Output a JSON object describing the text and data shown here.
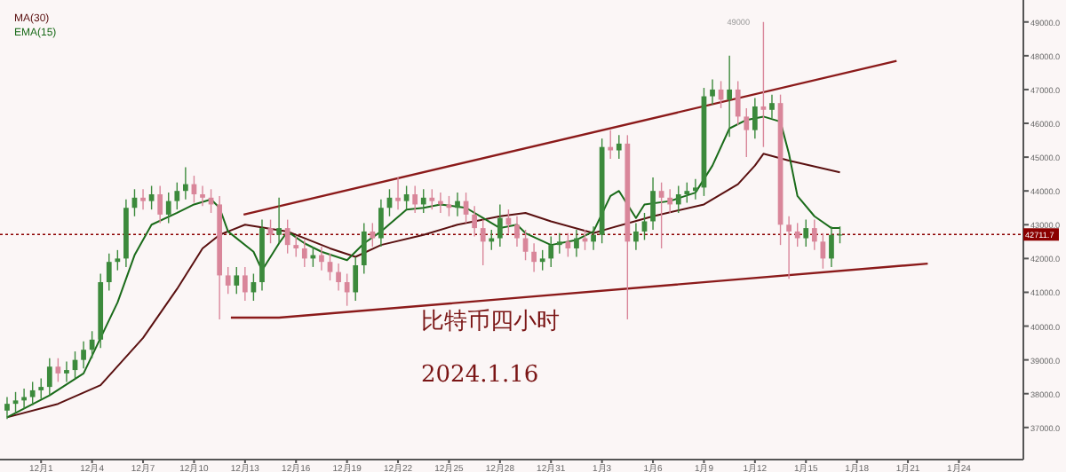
{
  "chart_data": {
    "type": "candlestick",
    "x": [
      "2023-11-29T00:00",
      "2023-11-29T12:00",
      "2023-11-30T00:00",
      "2023-11-30T12:00",
      "2023-12-01T00:00",
      "2023-12-01T12:00",
      "2023-12-02T00:00",
      "2023-12-02T12:00",
      "2023-12-03T00:00",
      "2023-12-03T12:00",
      "2023-12-04T00:00",
      "2023-12-04T12:00",
      "2023-12-05T00:00",
      "2023-12-05T12:00",
      "2023-12-06T00:00",
      "2023-12-06T12:00",
      "2023-12-07T00:00",
      "2023-12-07T12:00",
      "2023-12-08T00:00",
      "2023-12-08T12:00",
      "2023-12-09T00:00",
      "2023-12-09T12:00",
      "2023-12-10T00:00",
      "2023-12-10T12:00",
      "2023-12-11T00:00",
      "2023-12-11T12:00",
      "2023-12-12T00:00",
      "2023-12-12T12:00",
      "2023-12-13T00:00",
      "2023-12-13T12:00",
      "2023-12-14T00:00",
      "2023-12-14T12:00",
      "2023-12-15T00:00",
      "2023-12-15T12:00",
      "2023-12-16T00:00",
      "2023-12-16T12:00",
      "2023-12-17T00:00",
      "2023-12-17T12:00",
      "2023-12-18T00:00",
      "2023-12-18T12:00",
      "2023-12-19T00:00",
      "2023-12-19T12:00",
      "2023-12-20T00:00",
      "2023-12-20T12:00",
      "2023-12-21T00:00",
      "2023-12-21T12:00",
      "2023-12-22T00:00",
      "2023-12-22T12:00",
      "2023-12-23T00:00",
      "2023-12-23T12:00",
      "2023-12-24T00:00",
      "2023-12-24T12:00",
      "2023-12-25T00:00",
      "2023-12-25T12:00",
      "2023-12-26T00:00",
      "2023-12-26T12:00",
      "2023-12-27T00:00",
      "2023-12-27T12:00",
      "2023-12-28T00:00",
      "2023-12-28T12:00",
      "2023-12-29T00:00",
      "2023-12-29T12:00",
      "2023-12-30T00:00",
      "2023-12-30T12:00",
      "2023-12-31T00:00",
      "2023-12-31T12:00",
      "2024-01-01T00:00",
      "2024-01-01T12:00",
      "2024-01-02T00:00",
      "2024-01-02T12:00",
      "2024-01-03T00:00",
      "2024-01-03T12:00",
      "2024-01-04T00:00",
      "2024-01-04T12:00",
      "2024-01-05T00:00",
      "2024-01-05T12:00",
      "2024-01-06T00:00",
      "2024-01-06T12:00",
      "2024-01-07T00:00",
      "2024-01-07T12:00",
      "2024-01-08T00:00",
      "2024-01-08T12:00",
      "2024-01-09T00:00",
      "2024-01-09T12:00",
      "2024-01-10T00:00",
      "2024-01-10T12:00",
      "2024-01-11T00:00",
      "2024-01-11T12:00",
      "2024-01-12T00:00",
      "2024-01-12T12:00",
      "2024-01-13T00:00",
      "2024-01-13T12:00",
      "2024-01-14T00:00",
      "2024-01-14T12:00",
      "2024-01-15T00:00",
      "2024-01-15T12:00",
      "2024-01-16T00:00",
      "2024-01-16T12:00",
      "2024-01-17T00:00"
    ],
    "ohlc": [
      [
        37500,
        37900,
        37250,
        37700
      ],
      [
        37700,
        38050,
        37450,
        37800
      ],
      [
        37800,
        38150,
        37550,
        37900
      ],
      [
        37900,
        38350,
        37650,
        38100
      ],
      [
        38100,
        38450,
        37850,
        38200
      ],
      [
        38200,
        39050,
        37950,
        38800
      ],
      [
        38800,
        39050,
        38350,
        38600
      ],
      [
        38600,
        38950,
        38350,
        38700
      ],
      [
        38700,
        39250,
        38450,
        39000
      ],
      [
        39000,
        39550,
        38750,
        39300
      ],
      [
        39300,
        39850,
        39050,
        39600
      ],
      [
        39600,
        41550,
        39350,
        41300
      ],
      [
        41300,
        42150,
        41050,
        41900
      ],
      [
        41900,
        42250,
        41650,
        42000
      ],
      [
        42000,
        43750,
        41750,
        43500
      ],
      [
        43500,
        44050,
        43250,
        43800
      ],
      [
        43800,
        44050,
        43450,
        43700
      ],
      [
        43700,
        44150,
        43450,
        43900
      ],
      [
        43900,
        44150,
        43050,
        43300
      ],
      [
        43300,
        43950,
        43050,
        43700
      ],
      [
        43700,
        44250,
        43450,
        44000
      ],
      [
        44000,
        44700,
        43750,
        44200
      ],
      [
        44200,
        44450,
        43650,
        43900
      ],
      [
        43900,
        44150,
        43550,
        43800
      ],
      [
        43800,
        44050,
        43350,
        43600
      ],
      [
        43600,
        43850,
        40200,
        41500
      ],
      [
        41500,
        41750,
        40950,
        41200
      ],
      [
        41200,
        41750,
        40950,
        41500
      ],
      [
        41500,
        41750,
        40750,
        41000
      ],
      [
        41000,
        41550,
        40750,
        41300
      ],
      [
        41300,
        43150,
        41050,
        42900
      ],
      [
        42900,
        43150,
        42450,
        42700
      ],
      [
        42700,
        43800,
        42450,
        42900
      ],
      [
        42900,
        43150,
        42150,
        42400
      ],
      [
        42400,
        42650,
        42050,
        42300
      ],
      [
        42300,
        42550,
        41750,
        42000
      ],
      [
        42000,
        42350,
        41750,
        42100
      ],
      [
        42100,
        42350,
        41650,
        41900
      ],
      [
        41900,
        42150,
        41350,
        41600
      ],
      [
        41600,
        41850,
        41050,
        41300
      ],
      [
        41300,
        41550,
        40600,
        41000
      ],
      [
        41000,
        42050,
        40750,
        41800
      ],
      [
        41800,
        43050,
        41550,
        42800
      ],
      [
        42800,
        43050,
        42350,
        42600
      ],
      [
        42600,
        43750,
        42350,
        43500
      ],
      [
        43500,
        44050,
        43250,
        43800
      ],
      [
        43800,
        44400,
        43450,
        43700
      ],
      [
        43700,
        44150,
        43450,
        43900
      ],
      [
        43900,
        44150,
        43350,
        43600
      ],
      [
        43600,
        44050,
        43350,
        43800
      ],
      [
        43800,
        44050,
        43450,
        43700
      ],
      [
        43700,
        43950,
        43350,
        43600
      ],
      [
        43600,
        43850,
        43250,
        43500
      ],
      [
        43500,
        43950,
        43250,
        43700
      ],
      [
        43700,
        43950,
        43050,
        43300
      ],
      [
        43300,
        43550,
        42650,
        42900
      ],
      [
        42900,
        43150,
        41800,
        42500
      ],
      [
        42500,
        42850,
        42250,
        42600
      ],
      [
        42600,
        43600,
        42350,
        43200
      ],
      [
        43200,
        43450,
        42750,
        43000
      ],
      [
        43000,
        43250,
        42350,
        42600
      ],
      [
        42600,
        42850,
        41950,
        42200
      ],
      [
        42200,
        42450,
        41600,
        41900
      ],
      [
        41900,
        42250,
        41650,
        42000
      ],
      [
        42000,
        42650,
        41750,
        42400
      ],
      [
        42400,
        42750,
        42150,
        42500
      ],
      [
        42500,
        42750,
        42050,
        42300
      ],
      [
        42300,
        42850,
        42050,
        42600
      ],
      [
        42600,
        42850,
        42250,
        42500
      ],
      [
        42500,
        42950,
        42250,
        42700
      ],
      [
        42700,
        45550,
        42450,
        45300
      ],
      [
        45300,
        45800,
        44950,
        45200
      ],
      [
        45200,
        45650,
        44950,
        45400
      ],
      [
        45400,
        45650,
        40200,
        42500
      ],
      [
        42500,
        43050,
        42250,
        42800
      ],
      [
        42800,
        43350,
        42550,
        43100
      ],
      [
        43100,
        44400,
        42850,
        44000
      ],
      [
        44000,
        44250,
        42300,
        43800
      ],
      [
        43800,
        44050,
        43350,
        43600
      ],
      [
        43600,
        44150,
        43350,
        43900
      ],
      [
        43900,
        44250,
        43650,
        44000
      ],
      [
        44000,
        44350,
        43750,
        44100
      ],
      [
        44100,
        47050,
        43850,
        46800
      ],
      [
        46800,
        47300,
        46550,
        47000
      ],
      [
        47000,
        47250,
        46450,
        46700
      ],
      [
        46700,
        48000,
        45600,
        47000
      ],
      [
        47000,
        47250,
        45950,
        46200
      ],
      [
        46200,
        46450,
        45000,
        45800
      ],
      [
        45800,
        46750,
        45550,
        46500
      ],
      [
        46500,
        49000,
        45300,
        46400
      ],
      [
        46400,
        46850,
        46150,
        46600
      ],
      [
        46600,
        46850,
        42400,
        43000
      ],
      [
        43000,
        43250,
        41400,
        42800
      ],
      [
        42800,
        43050,
        42350,
        42600
      ],
      [
        42600,
        43150,
        42350,
        42900
      ],
      [
        42900,
        43150,
        42250,
        42500
      ],
      [
        42500,
        42750,
        41700,
        42000
      ],
      [
        42000,
        42950,
        41750,
        42700
      ],
      [
        42700,
        42950,
        42450,
        42711.7
      ]
    ],
    "series": [
      {
        "type": "line",
        "name": "MA(30)",
        "color": "#5a1010",
        "x": [
          "2023-11-29T00:00",
          "2023-12-02T00:00",
          "2023-12-04T12:00",
          "2023-12-07T00:00",
          "2023-12-09T00:00",
          "2023-12-10T12:00",
          "2023-12-11T12:00",
          "2023-12-13T00:00",
          "2023-12-15T12:00",
          "2023-12-18T00:00",
          "2023-12-19T12:00",
          "2023-12-21T00:00",
          "2023-12-23T12:00",
          "2023-12-25T12:00",
          "2023-12-28T00:00",
          "2023-12-29T12:00",
          "2023-12-31T00:00",
          "2024-01-02T12:00",
          "2024-01-03T12:00",
          "2024-01-06T00:00",
          "2024-01-09T00:00",
          "2024-01-11T00:00",
          "2024-01-12T00:00",
          "2024-01-12T12:00",
          "2024-01-14T00:00",
          "2024-01-17T00:00"
        ],
        "values": [
          37300,
          37700,
          38250,
          39650,
          41100,
          42300,
          42700,
          43000,
          42800,
          42300,
          42050,
          42400,
          42700,
          43000,
          43250,
          43350,
          43100,
          42750,
          42900,
          43250,
          43600,
          44200,
          44750,
          45100,
          44900,
          44550
        ]
      },
      {
        "type": "line",
        "name": "EMA(15)",
        "color": "#1a6b1a",
        "x": [
          "2023-11-29T00:00",
          "2023-12-01T12:00",
          "2023-12-03T12:00",
          "2023-12-04T12:00",
          "2023-12-05T12:00",
          "2023-12-06T12:00",
          "2023-12-07T12:00",
          "2023-12-09T00:00",
          "2023-12-10T00:00",
          "2023-12-11T00:00",
          "2023-12-11T12:00",
          "2023-12-12T00:00",
          "2023-12-13T12:00",
          "2023-12-14T00:00",
          "2023-12-15T00:00",
          "2023-12-15T12:00",
          "2023-12-16T12:00",
          "2023-12-17T12:00",
          "2023-12-19T00:00",
          "2023-12-20T00:00",
          "2023-12-21T00:00",
          "2023-12-22T12:00",
          "2023-12-23T12:00",
          "2023-12-24T12:00",
          "2023-12-26T00:00",
          "2023-12-27T00:00",
          "2023-12-28T00:00",
          "2023-12-29T00:00",
          "2023-12-29T12:00",
          "2023-12-31T00:00",
          "2024-01-01T12:00",
          "2024-01-02T12:00",
          "2024-01-03T12:00",
          "2024-01-04T00:00",
          "2024-01-05T00:00",
          "2024-01-05T12:00",
          "2024-01-07T00:00",
          "2024-01-08T12:00",
          "2024-01-09T12:00",
          "2024-01-10T12:00",
          "2024-01-11T12:00",
          "2024-01-12T12:00",
          "2024-01-13T12:00",
          "2024-01-14T00:00",
          "2024-01-14T12:00",
          "2024-01-15T12:00",
          "2024-01-16T12:00",
          "2024-01-17T00:00"
        ],
        "values": [
          37300,
          37950,
          38600,
          39650,
          40700,
          42100,
          43000,
          43350,
          43600,
          43750,
          43500,
          42800,
          42200,
          41650,
          42450,
          42800,
          42450,
          42200,
          41950,
          42450,
          42800,
          43450,
          43500,
          43600,
          43500,
          43200,
          42900,
          43000,
          42750,
          42400,
          42550,
          42800,
          43850,
          44000,
          43200,
          43600,
          43700,
          43950,
          44750,
          45850,
          46100,
          46200,
          46050,
          45100,
          43850,
          43250,
          42900,
          42900
        ]
      },
      {
        "type": "line",
        "color": "#8b1a1a",
        "x": [
          "2023-12-12T22:00",
          "2024-01-20T08:00"
        ],
        "values": [
          43300,
          47850
        ]
      },
      {
        "type": "line",
        "color": "#8b1a1a",
        "x": [
          "2023-12-12T04:00",
          "2023-12-15T00:00",
          "2024-01-22T04:00"
        ],
        "values": [
          40250,
          40250,
          41850
        ]
      }
    ],
    "xlim": [
      "2023-11-28T14:00",
      "2024-01-27T19:00"
    ],
    "xticks": [
      {
        "value": "2023-12-01T00:00",
        "label": "12月1"
      },
      {
        "value": "2023-12-04T00:00",
        "label": "12月4"
      },
      {
        "value": "2023-12-07T00:00",
        "label": "12月7"
      },
      {
        "value": "2023-12-10T00:00",
        "label": "12月10"
      },
      {
        "value": "2023-12-13T00:00",
        "label": "12月13"
      },
      {
        "value": "2023-12-16T00:00",
        "label": "12月16"
      },
      {
        "value": "2023-12-19T00:00",
        "label": "12月19"
      },
      {
        "value": "2023-12-22T00:00",
        "label": "12月22"
      },
      {
        "value": "2023-12-25T00:00",
        "label": "12月25"
      },
      {
        "value": "2023-12-28T00:00",
        "label": "12月28"
      },
      {
        "value": "2023-12-31T00:00",
        "label": "12月31"
      },
      {
        "value": "2024-01-03T00:00",
        "label": "1月3"
      },
      {
        "value": "2024-01-06T00:00",
        "label": "1月6"
      },
      {
        "value": "2024-01-09T00:00",
        "label": "1月9"
      },
      {
        "value": "2024-01-12T00:00",
        "label": "1月12"
      },
      {
        "value": "2024-01-15T00:00",
        "label": "1月15"
      },
      {
        "value": "2024-01-18T00:00",
        "label": "1月18"
      },
      {
        "value": "2024-01-21T00:00",
        "label": "1月21"
      },
      {
        "value": "2024-01-24T00:00",
        "label": "1月24"
      }
    ],
    "ylim": [
      36050,
      49650
    ],
    "yticks": [
      {
        "value": 37000,
        "label": "37000.0"
      },
      {
        "value": 38000,
        "label": "38000.0"
      },
      {
        "value": 39000,
        "label": "39000.0"
      },
      {
        "value": 40000,
        "label": "40000.0"
      },
      {
        "value": 41000,
        "label": "41000.0"
      },
      {
        "value": 42000,
        "label": "42000.0"
      },
      {
        "value": 43000,
        "label": "43000.0"
      },
      {
        "value": 44000,
        "label": "44000.0"
      },
      {
        "value": 45000,
        "label": "45000.0"
      },
      {
        "value": 46000,
        "label": "46000.0"
      },
      {
        "value": 47000,
        "label": "47000.0"
      },
      {
        "value": 48000,
        "label": "48000.0"
      },
      {
        "value": 49000,
        "label": "49000.0"
      }
    ],
    "ref_lines": [
      {
        "axis": "y",
        "value": 42711.7,
        "label": "42711.7",
        "color": "#8b0000",
        "line_style": "dotted"
      }
    ],
    "annotations": [
      "49000",
      "比特币四小时",
      "2024.1.16"
    ],
    "legend": "top left",
    "grid": false
  }
}
